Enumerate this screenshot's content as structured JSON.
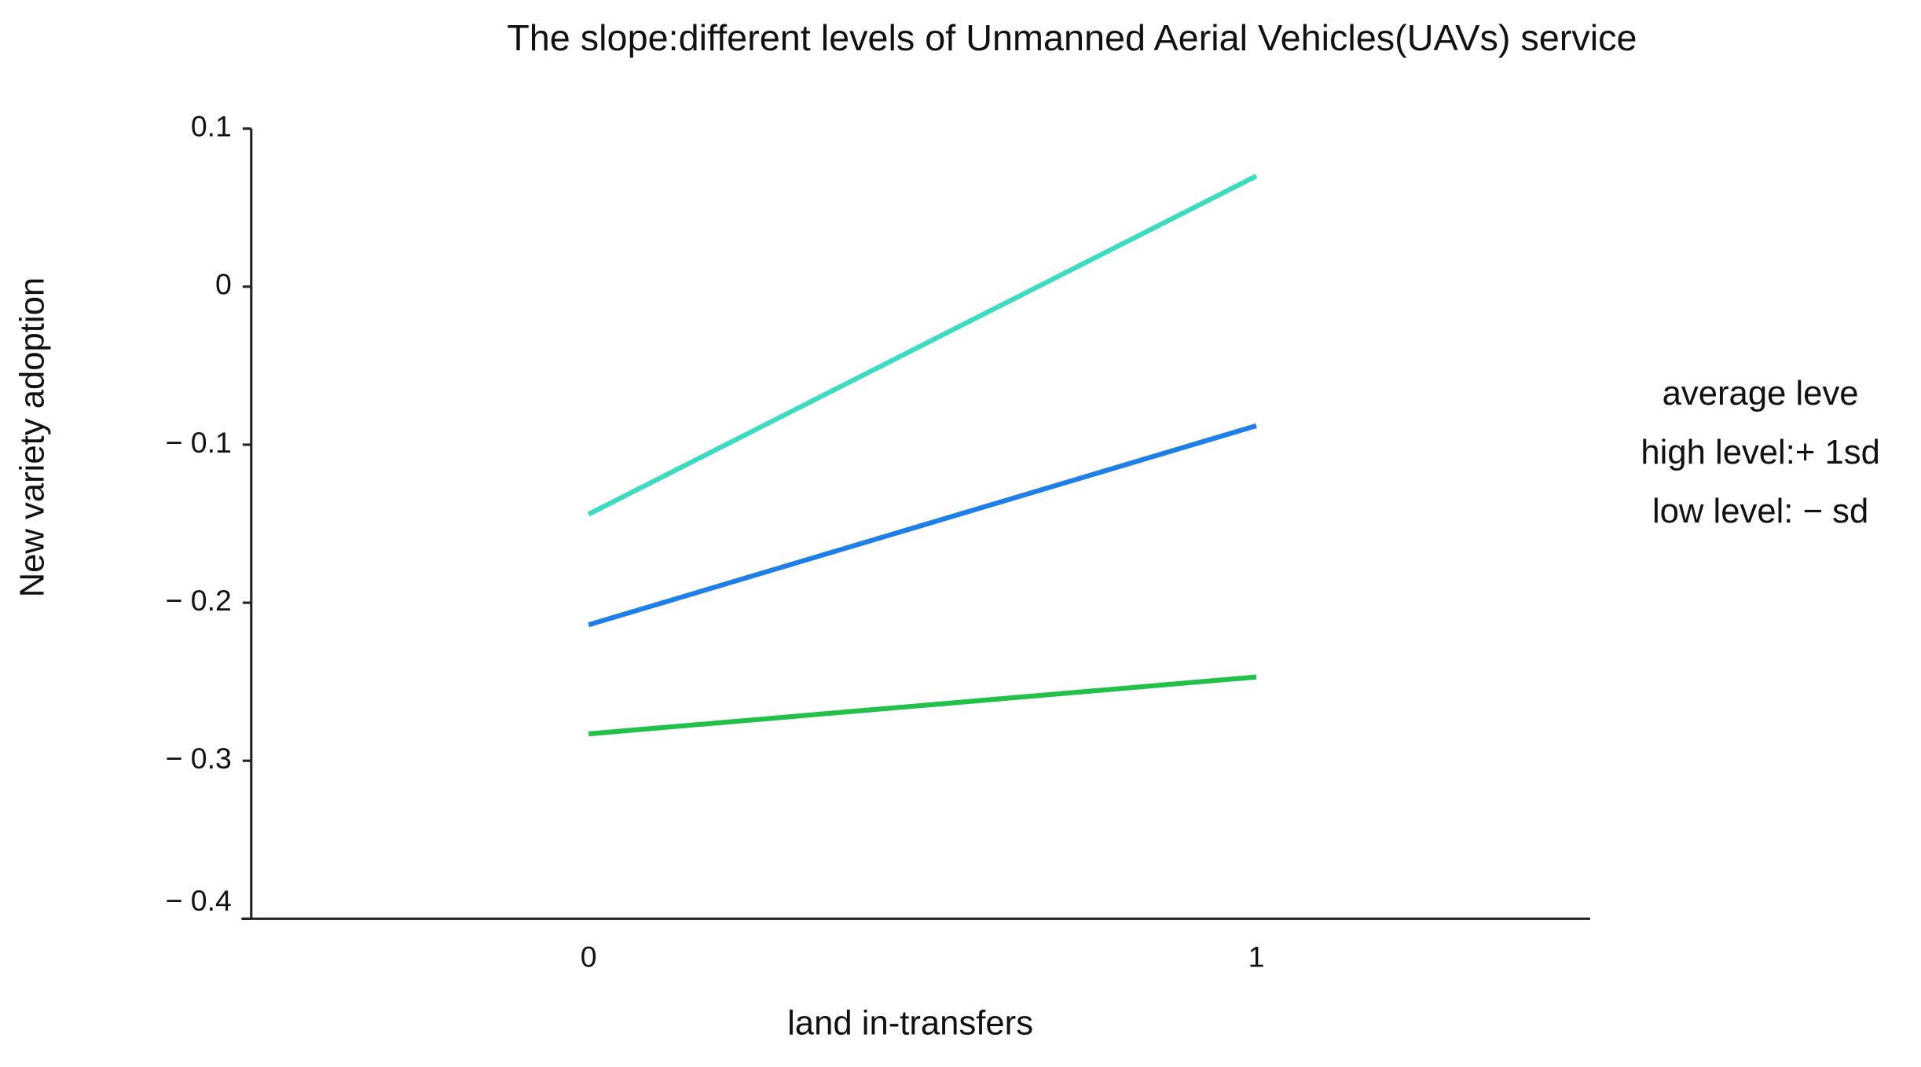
{
  "chart_data": {
    "type": "line",
    "title": "The slope:different levels of Unmanned Aerial Vehicles(UAVs)  service",
    "x_label": "land in-transfers",
    "y_label": "New variety adoption",
    "x": [
      0,
      1
    ],
    "series": [
      {
        "name": "average leve",
        "color": "#1f7fe8",
        "values": [
          -0.214,
          -0.088
        ]
      },
      {
        "name": "high level:+ 1sd",
        "color": "#3ddbc1",
        "values": [
          -0.144,
          0.07
        ]
      },
      {
        "name": "low level: − sd",
        "color": "#22c24a",
        "values": [
          -0.283,
          -0.247
        ]
      }
    ],
    "xlim": [
      -0.52,
      1.5
    ],
    "xticks": [
      0,
      1
    ],
    "ylim": [
      -0.4,
      0.1
    ],
    "yticks": [
      {
        "value": -0.4,
        "label": "− 0.4"
      },
      {
        "value": -0.3,
        "label": "− 0.3"
      },
      {
        "value": -0.2,
        "label": "− 0.2"
      },
      {
        "value": -0.1,
        "label": "− 0.1"
      },
      0,
      0.1
    ],
    "grid": false,
    "legend": "right"
  }
}
